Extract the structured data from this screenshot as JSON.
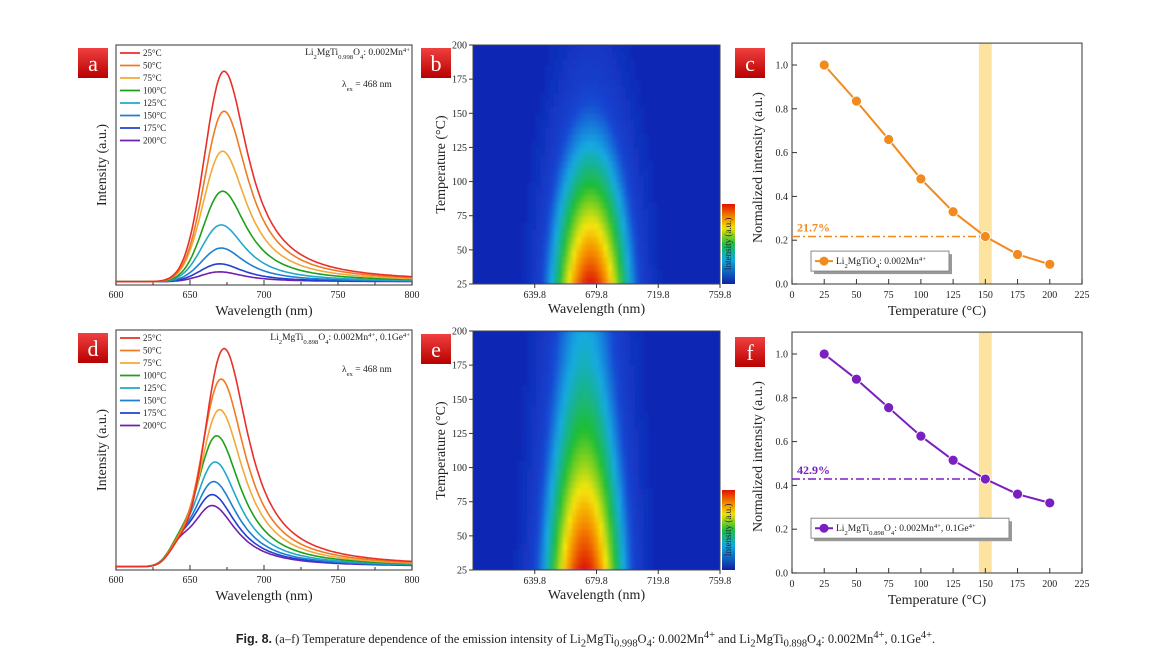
{
  "chart_data": [
    {
      "panel": "a",
      "type": "line",
      "xlabel": "Wavelength (nm)",
      "ylabel": "Intensity (a.u.)",
      "xlim": [
        600,
        800
      ],
      "xticks": [
        "600",
        "650",
        "700",
        "750",
        "800"
      ],
      "annotation": [
        {
          "t": "Li"
        },
        {
          "sub": "2"
        },
        {
          "t": "MgTi"
        },
        {
          "sub": "0.998"
        },
        {
          "t": "O"
        },
        {
          "sub": "4"
        },
        {
          "t": ": 0.002Mn"
        },
        {
          "sup": "4+"
        }
      ],
      "excitation": [
        {
          "t": "λ"
        },
        {
          "sub": "ex"
        },
        {
          "t": " = 468 nm"
        }
      ],
      "series": [
        {
          "name": "25°C",
          "color": "#e8302a",
          "peak_nm": 673,
          "peak_intensity": 1.0
        },
        {
          "name": "50°C",
          "color": "#f07a22",
          "peak_nm": 673,
          "peak_intensity": 0.81
        },
        {
          "name": "75°C",
          "color": "#f2a93a",
          "peak_nm": 672,
          "peak_intensity": 0.62
        },
        {
          "name": "100°C",
          "color": "#1ea01e",
          "peak_nm": 672,
          "peak_intensity": 0.43
        },
        {
          "name": "125°C",
          "color": "#22a9c9",
          "peak_nm": 671,
          "peak_intensity": 0.27
        },
        {
          "name": "150°C",
          "color": "#1e7fd2",
          "peak_nm": 671,
          "peak_intensity": 0.16
        },
        {
          "name": "175°C",
          "color": "#2240d0",
          "peak_nm": 670,
          "peak_intensity": 0.085
        },
        {
          "name": "200°C",
          "color": "#7020b0",
          "peak_nm": 670,
          "peak_intensity": 0.047
        }
      ]
    },
    {
      "panel": "b",
      "type": "heatmap",
      "xlabel": "Wavelength (nm)",
      "ylabel": "Temperature (°C)",
      "xlim": [
        599.8,
        759.8
      ],
      "ylim": [
        25,
        200
      ],
      "xticks": [
        "639.8",
        "679.8",
        "719.8",
        "759.8"
      ],
      "yticks": [
        "25",
        "50",
        "75",
        "100",
        "125",
        "150",
        "175",
        "200"
      ],
      "colorbar_label": "Intensity (a.u.)",
      "peak_nm": 676
    },
    {
      "panel": "c",
      "type": "line",
      "xlabel": "Temperature (°C)",
      "ylabel": "Normalized intensity (a.u.)",
      "xlim": [
        0,
        225
      ],
      "ylim": [
        0,
        1.1
      ],
      "xticks": [
        "0",
        "25",
        "50",
        "75",
        "100",
        "125",
        "150",
        "175",
        "200",
        "225"
      ],
      "yticks": [
        "0.0",
        "0.2",
        "0.4",
        "0.6",
        "0.8",
        "1.0"
      ],
      "x": [
        25,
        50,
        75,
        100,
        125,
        150,
        175,
        200
      ],
      "series": [
        {
          "name": [
            {
              "t": "Li"
            },
            {
              "sub": "2"
            },
            {
              "t": "MgTiO"
            },
            {
              "sub": "4"
            },
            {
              "t": ": 0.002Mn"
            },
            {
              "sup": "4+"
            }
          ],
          "color": "#f28a1e",
          "values": [
            1.0,
            0.835,
            0.66,
            0.48,
            0.33,
            0.217,
            0.135,
            0.09
          ]
        }
      ],
      "highlight_x": 150,
      "marker_label": "21.7%",
      "marker_value": 0.217,
      "legend": "bottom-left"
    },
    {
      "panel": "d",
      "type": "line",
      "xlabel": "Wavelength (nm)",
      "ylabel": "Intensity (a.u.)",
      "xlim": [
        600,
        800
      ],
      "xticks": [
        "600",
        "650",
        "700",
        "750",
        "800"
      ],
      "annotation": [
        {
          "t": "Li"
        },
        {
          "sub": "2"
        },
        {
          "t": "MgTi"
        },
        {
          "sub": "0.898"
        },
        {
          "t": "O"
        },
        {
          "sub": "4"
        },
        {
          "t": ": 0.002Mn"
        },
        {
          "sup": "4+"
        },
        {
          "t": ", 0.1Ge"
        },
        {
          "sup": "4+"
        }
      ],
      "excitation": [
        {
          "t": "λ"
        },
        {
          "sub": "ex"
        },
        {
          "t": " = 468 nm"
        }
      ],
      "series": [
        {
          "name": "25°C",
          "color": "#e8302a",
          "peak_nm": 673,
          "peak_intensity": 1.0
        },
        {
          "name": "50°C",
          "color": "#f07a22",
          "peak_nm": 671,
          "peak_intensity": 0.86
        },
        {
          "name": "75°C",
          "color": "#f2a93a",
          "peak_nm": 670,
          "peak_intensity": 0.72
        },
        {
          "name": "100°C",
          "color": "#1ea01e",
          "peak_nm": 668,
          "peak_intensity": 0.6
        },
        {
          "name": "125°C",
          "color": "#22a9c9",
          "peak_nm": 667,
          "peak_intensity": 0.48
        },
        {
          "name": "150°C",
          "color": "#1e7fd2",
          "peak_nm": 666,
          "peak_intensity": 0.39
        },
        {
          "name": "175°C",
          "color": "#2240d0",
          "peak_nm": 665,
          "peak_intensity": 0.33
        },
        {
          "name": "200°C",
          "color": "#7020b0",
          "peak_nm": 665,
          "peak_intensity": 0.28
        }
      ]
    },
    {
      "panel": "e",
      "type": "heatmap",
      "xlabel": "Wavelength (nm)",
      "ylabel": "Temperature (°C)",
      "xlim": [
        599.8,
        759.8
      ],
      "ylim": [
        25,
        200
      ],
      "xticks": [
        "639.8",
        "679.8",
        "719.8",
        "759.8"
      ],
      "yticks": [
        "25",
        "50",
        "75",
        "100",
        "125",
        "150",
        "175",
        "200"
      ],
      "colorbar_label": "Intensity (a.u.)",
      "peak_nm": 672
    },
    {
      "panel": "f",
      "type": "line",
      "xlabel": "Temperature (°C)",
      "ylabel": "Normalized intensity (a.u.)",
      "xlim": [
        0,
        225
      ],
      "ylim": [
        0,
        1.1
      ],
      "xticks": [
        "0",
        "25",
        "50",
        "75",
        "100",
        "125",
        "150",
        "175",
        "200",
        "225"
      ],
      "yticks": [
        "0.0",
        "0.2",
        "0.4",
        "0.6",
        "0.8",
        "1.0"
      ],
      "x": [
        25,
        50,
        75,
        100,
        125,
        150,
        175,
        200
      ],
      "series": [
        {
          "name": [
            {
              "t": "Li"
            },
            {
              "sub": "2"
            },
            {
              "t": "MgTi"
            },
            {
              "sub": "0.898"
            },
            {
              "t": "O"
            },
            {
              "sub": "4"
            },
            {
              "t": ": 0.002Mn"
            },
            {
              "sup": "4+"
            },
            {
              "t": ", 0.1Ge"
            },
            {
              "sup": "4+"
            }
          ],
          "color": "#7a1fc0",
          "values": [
            1.0,
            0.885,
            0.755,
            0.625,
            0.515,
            0.429,
            0.36,
            0.32
          ]
        }
      ],
      "highlight_x": 150,
      "marker_label": "42.9%",
      "marker_value": 0.429,
      "legend": "bottom-left"
    }
  ],
  "caption": {
    "label": "Fig. 8.",
    "text": [
      {
        "t": " (a–f) Temperature dependence of the emission intensity of Li"
      },
      {
        "sub": "2"
      },
      {
        "t": "MgTi"
      },
      {
        "sub": "0.998"
      },
      {
        "t": "O"
      },
      {
        "sub": "4"
      },
      {
        "t": ": 0.002Mn"
      },
      {
        "sup": "4+"
      },
      {
        "t": " and Li"
      },
      {
        "sub": "2"
      },
      {
        "t": "MgTi"
      },
      {
        "sub": "0.898"
      },
      {
        "t": "O"
      },
      {
        "sub": "4"
      },
      {
        "t": ": 0.002Mn"
      },
      {
        "sup": "4+"
      },
      {
        "t": ", 0.1Ge"
      },
      {
        "sup": "4+"
      },
      {
        "t": "."
      }
    ]
  },
  "colors": {
    "panel_label_bg": "#d81010",
    "highlight_band": "#fde3a0",
    "heatmap_background": "#1430b8"
  }
}
